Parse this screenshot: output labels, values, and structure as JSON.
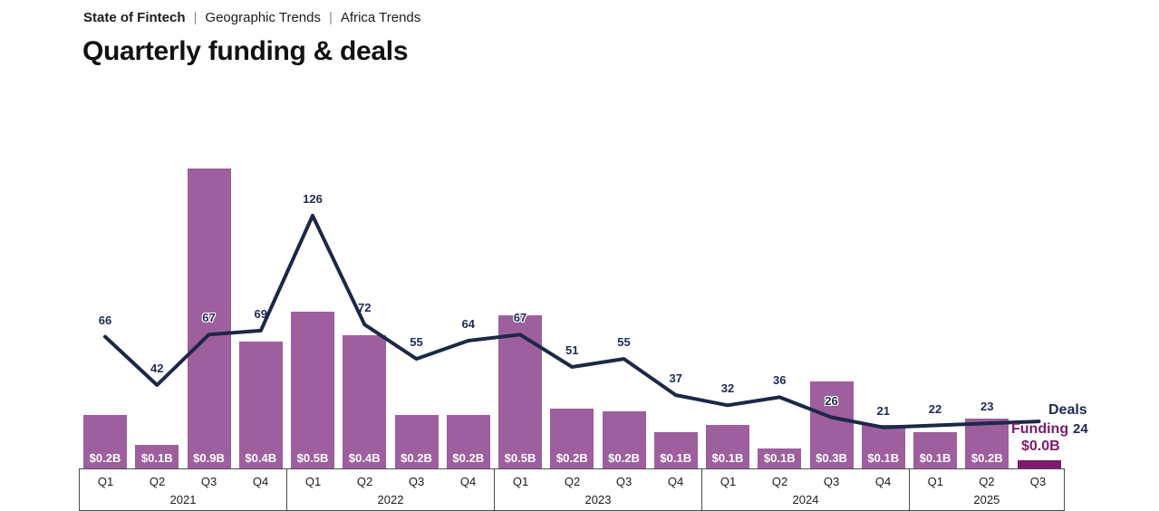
{
  "breadcrumb": {
    "items": [
      "State of Fintech",
      "Geographic Trends",
      "Africa Trends"
    ],
    "separator": "|"
  },
  "title": "Quarterly funding & deals",
  "series_labels": {
    "deals": "Deals",
    "funding": "Funding"
  },
  "chart_data": {
    "type": "bar+line",
    "title": "Quarterly funding & deals",
    "years": [
      {
        "label": "2021",
        "quarters": [
          "Q1",
          "Q2",
          "Q3",
          "Q4"
        ]
      },
      {
        "label": "2022",
        "quarters": [
          "Q1",
          "Q2",
          "Q3",
          "Q4"
        ]
      },
      {
        "label": "2023",
        "quarters": [
          "Q1",
          "Q2",
          "Q3",
          "Q4"
        ]
      },
      {
        "label": "2024",
        "quarters": [
          "Q1",
          "Q2",
          "Q3",
          "Q4"
        ]
      },
      {
        "label": "2025",
        "quarters": [
          "Q1",
          "Q2",
          "Q3"
        ]
      }
    ],
    "series": [
      {
        "name": "Funding",
        "type": "bar",
        "unit": "USD billions",
        "labels": [
          "$0.2B",
          "$0.1B",
          "$0.9B",
          "$0.4B",
          "$0.5B",
          "$0.4B",
          "$0.2B",
          "$0.2B",
          "$0.5B",
          "$0.2B",
          "$0.2B",
          "$0.1B",
          "$0.1B",
          "$0.1B",
          "$0.3B",
          "$0.1B",
          "$0.1B",
          "$0.2B",
          "$0.0B"
        ],
        "values_est": [
          0.16,
          0.07,
          0.9,
          0.38,
          0.47,
          0.4,
          0.16,
          0.16,
          0.46,
          0.18,
          0.17,
          0.11,
          0.13,
          0.06,
          0.26,
          0.13,
          0.11,
          0.15,
          0.025
        ]
      },
      {
        "name": "Deals",
        "type": "line",
        "values": [
          66,
          42,
          67,
          69,
          126,
          72,
          55,
          64,
          67,
          51,
          55,
          37,
          32,
          36,
          26,
          21,
          22,
          23,
          24
        ]
      }
    ],
    "legend_position": "end-of-series",
    "grid": false,
    "colors": {
      "bar": "#9D5F9E",
      "bar_last": "#7D1A6E",
      "line": "#1C2847",
      "deal_label": "#1F2A50",
      "funding_label": "#7D1A6E"
    }
  }
}
